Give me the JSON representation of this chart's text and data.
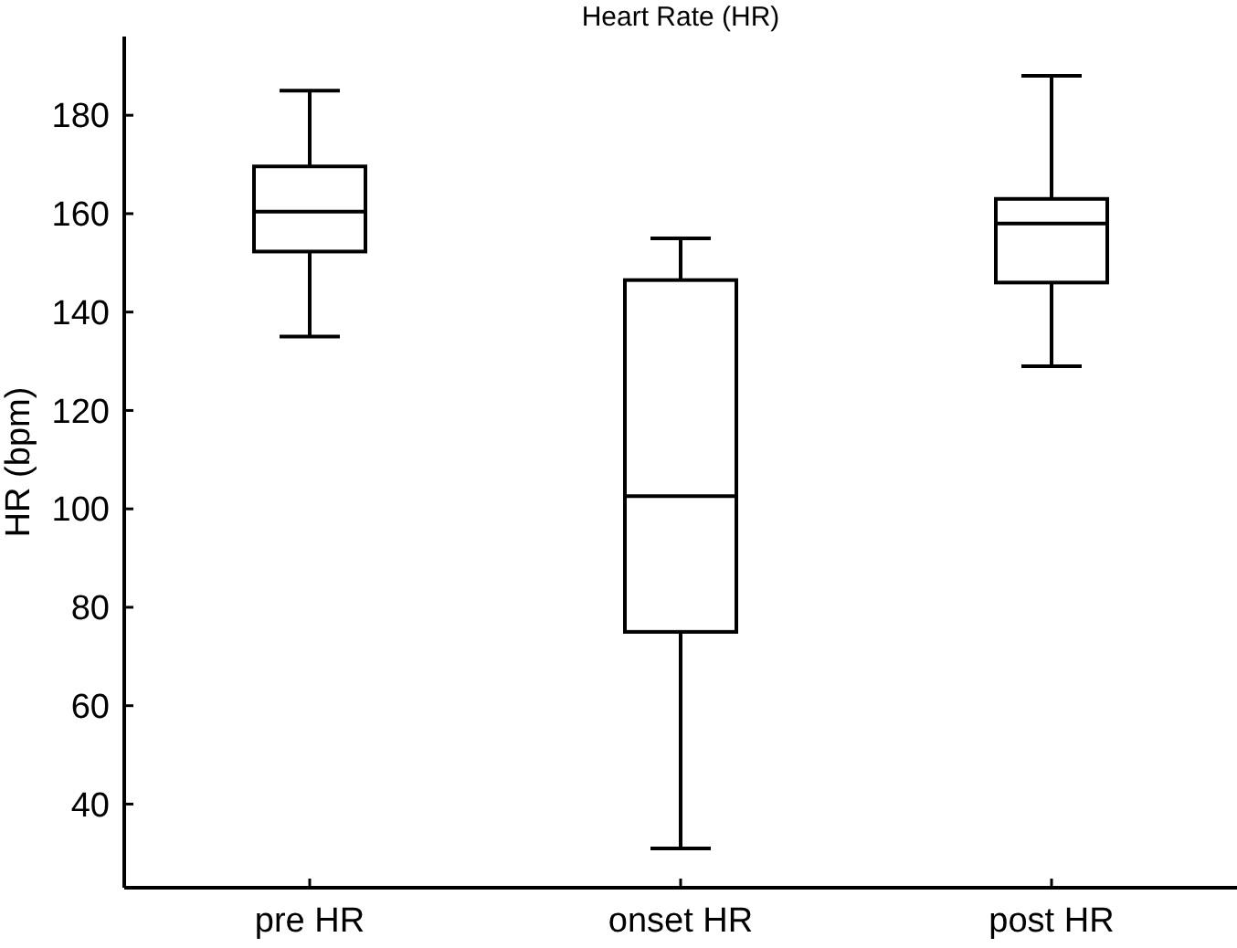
{
  "chart_data": {
    "type": "box",
    "title": "Heart Rate (HR)",
    "ylabel": "HR (bpm)",
    "categories": [
      "pre HR",
      "onset HR",
      "post HR"
    ],
    "boxes": [
      {
        "low": 135,
        "q1": 152.3,
        "median": 160.4,
        "q3": 169.6,
        "high": 185
      },
      {
        "low": 31,
        "q1": 75,
        "median": 102.6,
        "q3": 146.5,
        "high": 155
      },
      {
        "low": 129,
        "q1": 146,
        "median": 158,
        "q3": 163,
        "high": 188
      }
    ],
    "color": "#000000",
    "ylim": [
      23,
      196
    ],
    "yticks": [
      40,
      60,
      80,
      100,
      120,
      140,
      160,
      180
    ],
    "grid": false
  }
}
